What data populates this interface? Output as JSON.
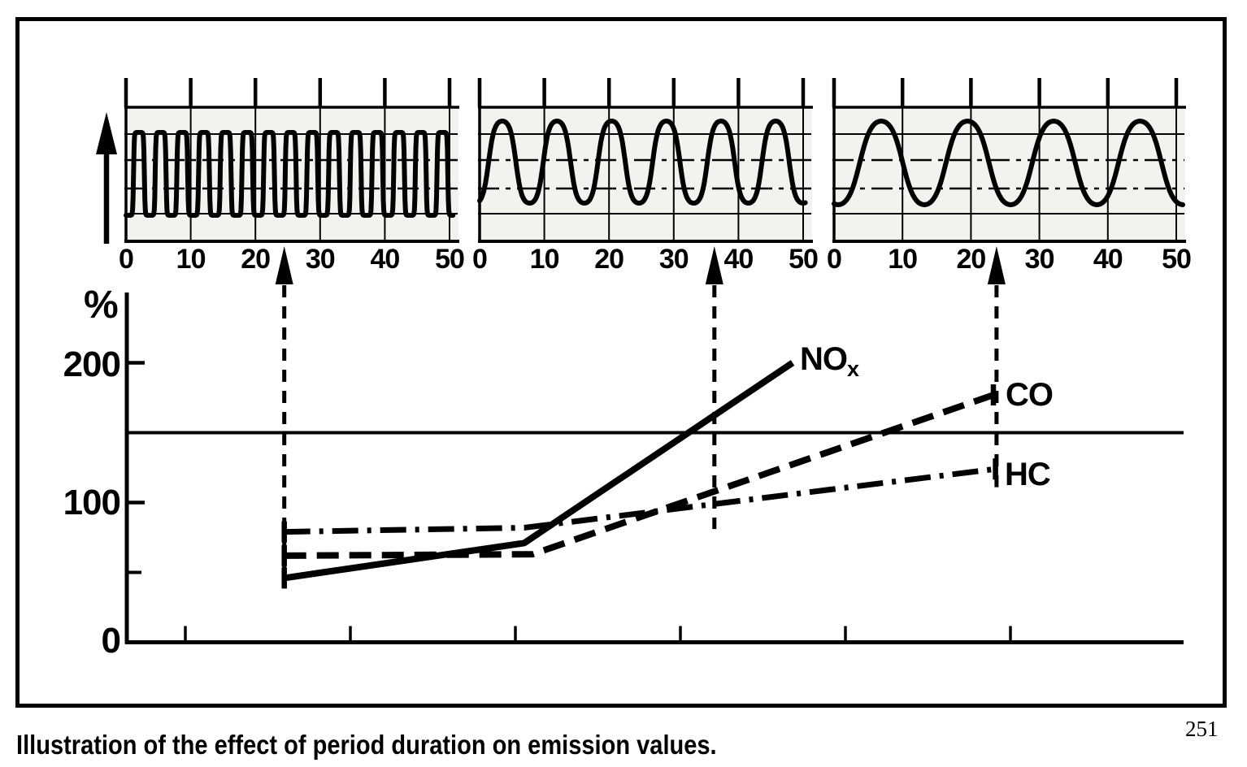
{
  "figure": {
    "caption": "Illustration of the effect of period duration on emission values.",
    "page_number": "251"
  },
  "colors": {
    "ink": "#000000",
    "panel_background": "#f2f2ef",
    "paper": "#ffffff"
  },
  "chart_data": [
    {
      "id": "waveform-short-period",
      "type": "line",
      "title": "",
      "x_ticks": [
        "0",
        "10",
        "20",
        "30",
        "40",
        "50"
      ],
      "x_range": [
        0,
        50
      ],
      "wave": {
        "shape": "rounded-square",
        "period": 3.35,
        "first_peak": 2.0,
        "squareness": 5.0
      },
      "note": "short period duration oscillation"
    },
    {
      "id": "waveform-medium-period",
      "type": "line",
      "title": "",
      "x_ticks": [
        "0",
        "10",
        "20",
        "30",
        "40",
        "50"
      ],
      "x_range": [
        0,
        50
      ],
      "wave": {
        "shape": "rounded-sine",
        "period": 8.45,
        "first_peak": 3.5,
        "squareness": 1.4
      },
      "note": "medium period duration oscillation"
    },
    {
      "id": "waveform-long-period",
      "type": "line",
      "title": "",
      "x_ticks": [
        "0",
        "10",
        "20",
        "30",
        "40",
        "50"
      ],
      "x_range": [
        0,
        50
      ],
      "wave": {
        "shape": "sine",
        "period": 12.6,
        "first_peak": 6.9,
        "squareness": 1.0
      },
      "note": "long period duration oscillation"
    },
    {
      "id": "emissions-vs-period-duration",
      "type": "line",
      "ylabel": "%",
      "ylim": [
        0,
        250
      ],
      "y_ticks": [
        {
          "value": 200,
          "label": "200"
        },
        {
          "value": 100,
          "label": "100"
        },
        {
          "value": 0,
          "label": "0"
        }
      ],
      "y_minor_tick_value": 50,
      "reference_line_value": 150,
      "grid": false,
      "series": [
        {
          "name": "NOx",
          "label": "NO",
          "label_subscript": "x",
          "line_style": "solid",
          "points": [
            [
              0.149,
              46
            ],
            [
              0.376,
              71
            ],
            [
              0.63,
              200
            ]
          ]
        },
        {
          "name": "CO",
          "label": "CO",
          "line_style": "dashed",
          "points": [
            [
              0.149,
              62
            ],
            [
              0.384,
              63
            ],
            [
              0.82,
              177
            ]
          ]
        },
        {
          "name": "HC",
          "label": "HC",
          "line_style": "dash-dot",
          "points": [
            [
              0.149,
              79
            ],
            [
              0.376,
              82
            ],
            [
              0.822,
              124
            ]
          ]
        }
      ],
      "period_marker_arrows": [
        {
          "x_frac": 0.149,
          "bottom_value": 40
        },
        {
          "x_frac": 0.556,
          "bottom_value": 81
        },
        {
          "x_frac": 0.823,
          "bottom_value": 111
        }
      ]
    }
  ]
}
